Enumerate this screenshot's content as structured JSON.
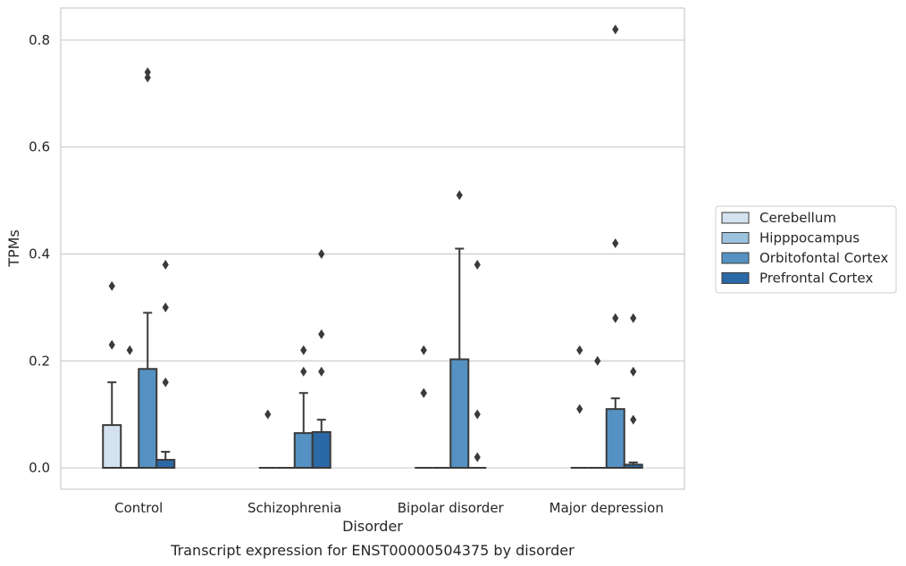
{
  "chart_data": {
    "type": "box",
    "caption": "Transcript expression for ENST00000504375 by disorder",
    "xlabel": "Disorder",
    "ylabel": "TPMs",
    "ylim": [
      -0.04,
      0.86
    ],
    "yticks": [
      0.0,
      0.2,
      0.4,
      0.6,
      0.8
    ],
    "ytick_labels": [
      "0.0",
      "0.2",
      "0.4",
      "0.6",
      "0.8"
    ],
    "grid": true,
    "legend_position": "right",
    "categories": [
      "Control",
      "Schizophrenia",
      "Bipolar disorder",
      "Major depression"
    ],
    "series": [
      {
        "name": "Cerebellum",
        "color": "#d4e2f0",
        "boxes": [
          {
            "q1": 0.0,
            "median": 0.0,
            "q3": 0.08,
            "whisker_low": 0.0,
            "whisker_high": 0.16,
            "outliers": [
              0.23,
              0.34
            ]
          },
          {
            "q1": 0.0,
            "median": 0.0,
            "q3": 0.0,
            "whisker_low": 0.0,
            "whisker_high": 0.0,
            "outliers": [
              0.1
            ]
          },
          {
            "q1": 0.0,
            "median": 0.0,
            "q3": 0.0,
            "whisker_low": 0.0,
            "whisker_high": 0.0,
            "outliers": [
              0.14,
              0.14,
              0.22
            ]
          },
          {
            "q1": 0.0,
            "median": 0.0,
            "q3": 0.0,
            "whisker_low": 0.0,
            "whisker_high": 0.0,
            "outliers": [
              0.11,
              0.22
            ]
          }
        ]
      },
      {
        "name": "Hipppocampus",
        "color": "#9cc2de",
        "boxes": [
          {
            "q1": 0.0,
            "median": 0.0,
            "q3": 0.0,
            "whisker_low": 0.0,
            "whisker_high": 0.0,
            "outliers": [
              0.22
            ]
          },
          {
            "q1": 0.0,
            "median": 0.0,
            "q3": 0.0,
            "whisker_low": 0.0,
            "whisker_high": 0.0,
            "outliers": []
          },
          {
            "q1": 0.0,
            "median": 0.0,
            "q3": 0.0,
            "whisker_low": 0.0,
            "whisker_high": 0.0,
            "outliers": []
          },
          {
            "q1": 0.0,
            "median": 0.0,
            "q3": 0.0,
            "whisker_low": 0.0,
            "whisker_high": 0.0,
            "outliers": [
              0.2
            ]
          }
        ]
      },
      {
        "name": "Orbitofontal Cortex",
        "color": "#5591c2",
        "boxes": [
          {
            "q1": 0.0,
            "median": 0.0,
            "q3": 0.185,
            "whisker_low": 0.0,
            "whisker_high": 0.29,
            "outliers": [
              0.73,
              0.74
            ]
          },
          {
            "q1": 0.0,
            "median": 0.0,
            "q3": 0.065,
            "whisker_low": 0.0,
            "whisker_high": 0.14,
            "outliers": [
              0.18,
              0.22
            ]
          },
          {
            "q1": 0.0,
            "median": 0.0,
            "q3": 0.203,
            "whisker_low": 0.0,
            "whisker_high": 0.41,
            "outliers": [
              0.51
            ]
          },
          {
            "q1": 0.0,
            "median": 0.0,
            "q3": 0.11,
            "whisker_low": 0.0,
            "whisker_high": 0.13,
            "outliers": [
              0.28,
              0.42,
              0.82
            ]
          }
        ]
      },
      {
        "name": "Prefrontal Cortex",
        "color": "#2b68a6",
        "boxes": [
          {
            "q1": 0.0,
            "median": 0.0,
            "q3": 0.015,
            "whisker_low": 0.0,
            "whisker_high": 0.03,
            "outliers": [
              0.16,
              0.3,
              0.38
            ]
          },
          {
            "q1": 0.0,
            "median": 0.0,
            "q3": 0.067,
            "whisker_low": 0.0,
            "whisker_high": 0.09,
            "outliers": [
              0.18,
              0.25,
              0.4
            ]
          },
          {
            "q1": 0.0,
            "median": 0.0,
            "q3": 0.0,
            "whisker_low": 0.0,
            "whisker_high": 0.0,
            "outliers": [
              0.02,
              0.1,
              0.38
            ]
          },
          {
            "q1": 0.0,
            "median": 0.0,
            "q3": 0.006,
            "whisker_low": 0.0,
            "whisker_high": 0.01,
            "outliers": [
              0.09,
              0.18,
              0.28
            ]
          }
        ]
      }
    ],
    "style": {
      "grid_color": "#cccccc",
      "frame_color": "#cccccc",
      "line_color": "#3a3a3a",
      "text_color": "#262626"
    }
  }
}
